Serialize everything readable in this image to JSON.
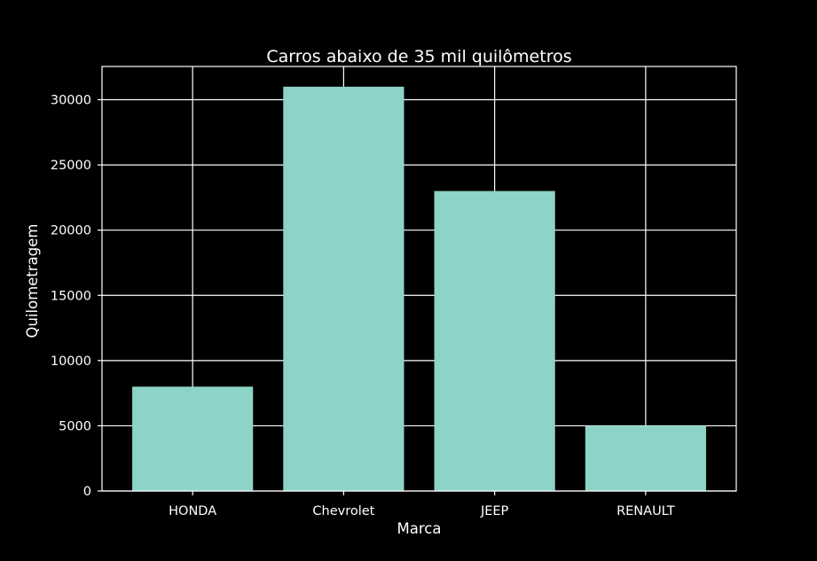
{
  "chart_data": {
    "type": "bar",
    "title": "Carros abaixo de 35 mil quilômetros",
    "xlabel": "Marca",
    "ylabel": "Quilometragem",
    "categories": [
      "HONDA",
      "Chevrolet",
      "JEEP",
      "RENAULT"
    ],
    "values": [
      8000,
      31000,
      23000,
      5000
    ],
    "ylim": [
      0,
      32550
    ],
    "yticks": [
      0,
      5000,
      10000,
      15000,
      20000,
      25000,
      30000
    ],
    "grid": true,
    "bar_color": "#8dd3c7",
    "background": "#000000",
    "grid_color": "#ffffff",
    "text_color": "#ffffff"
  }
}
